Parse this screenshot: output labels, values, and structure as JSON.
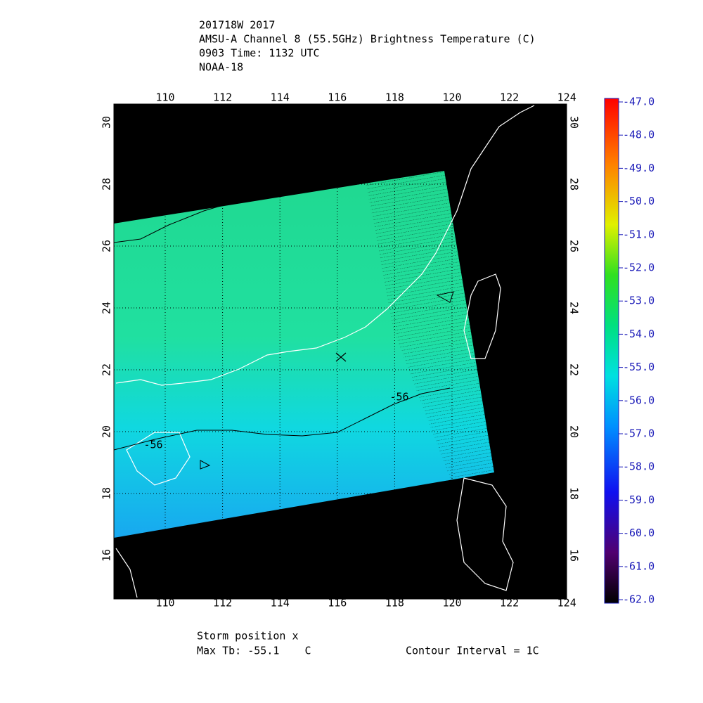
{
  "header": {
    "lines": [
      "201718W 2017",
      "AMSU-A Channel 8 (55.5GHz) Brightness Temperature (C)",
      "0903 Time: 1132 UTC",
      "NOAA-18"
    ]
  },
  "map": {
    "lon_ticks": [
      "110",
      "112",
      "114",
      "116",
      "118",
      "120",
      "122",
      "124"
    ],
    "lat_ticks": [
      "16",
      "18",
      "20",
      "22",
      "24",
      "26",
      "28",
      "30"
    ],
    "contour_labels": [
      "-56",
      "-56"
    ]
  },
  "colorbar": {
    "labels": [
      "-47.0",
      "-48.0",
      "-49.0",
      "-50.0",
      "-51.0",
      "-52.0",
      "-53.0",
      "-54.0",
      "-55.0",
      "-56.0",
      "-57.0",
      "-58.0",
      "-59.0",
      "-60.0",
      "-61.0",
      "-62.0"
    ]
  },
  "footer": {
    "storm_position": "Storm position x",
    "max_tb": "Max Tb: -55.1    C",
    "contour_interval": "Contour Interval = 1C"
  }
}
